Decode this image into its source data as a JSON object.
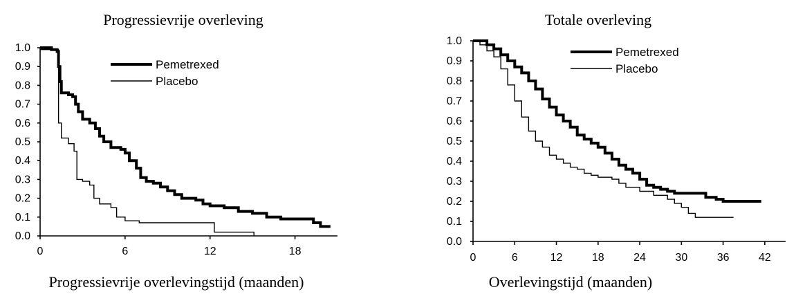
{
  "chart_data": [
    {
      "type": "line",
      "title": "Progressievrije overleving",
      "xlabel": "Progressievrije overlevingstijd (maanden)",
      "ylabel": "",
      "xlim": [
        0,
        21
      ],
      "ylim": [
        0,
        1
      ],
      "x_ticks": [
        "0",
        "6",
        "12",
        "18"
      ],
      "y_ticks": [
        "0.0",
        "0.1",
        "0.2",
        "0.3",
        "0.4",
        "0.5",
        "0.6",
        "0.7",
        "0.8",
        "0.9",
        "1.0"
      ],
      "legend_position": "top-center",
      "grid": false,
      "series": [
        {
          "name": "Pemetrexed",
          "color": "#000000",
          "line_style": "thick",
          "points": [
            [
              0,
              1.0
            ],
            [
              0.6,
              1.0
            ],
            [
              0.8,
              0.99
            ],
            [
              1.2,
              0.98
            ],
            [
              1.3,
              0.9
            ],
            [
              1.4,
              0.82
            ],
            [
              1.5,
              0.76
            ],
            [
              2.0,
              0.75
            ],
            [
              2.3,
              0.74
            ],
            [
              2.5,
              0.7
            ],
            [
              2.7,
              0.66
            ],
            [
              3.0,
              0.62
            ],
            [
              3.5,
              0.6
            ],
            [
              3.9,
              0.57
            ],
            [
              4.2,
              0.53
            ],
            [
              4.5,
              0.5
            ],
            [
              5.0,
              0.47
            ],
            [
              5.7,
              0.46
            ],
            [
              6.0,
              0.44
            ],
            [
              6.3,
              0.4
            ],
            [
              6.8,
              0.36
            ],
            [
              7.1,
              0.31
            ],
            [
              7.5,
              0.29
            ],
            [
              8.0,
              0.28
            ],
            [
              8.5,
              0.26
            ],
            [
              9.0,
              0.24
            ],
            [
              9.5,
              0.22
            ],
            [
              10.0,
              0.2
            ],
            [
              11.0,
              0.19
            ],
            [
              11.5,
              0.17
            ],
            [
              12.0,
              0.16
            ],
            [
              13.0,
              0.15
            ],
            [
              14.0,
              0.13
            ],
            [
              15.0,
              0.12
            ],
            [
              16.0,
              0.1
            ],
            [
              17.0,
              0.09
            ],
            [
              19.0,
              0.09
            ],
            [
              19.3,
              0.07
            ],
            [
              19.8,
              0.05
            ],
            [
              20.5,
              0.05
            ]
          ]
        },
        {
          "name": "Placebo",
          "color": "#000000",
          "line_style": "thin",
          "points": [
            [
              0,
              0.99
            ],
            [
              1.2,
              0.99
            ],
            [
              1.3,
              0.6
            ],
            [
              1.5,
              0.52
            ],
            [
              2.0,
              0.49
            ],
            [
              2.4,
              0.45
            ],
            [
              2.6,
              0.3
            ],
            [
              3.0,
              0.29
            ],
            [
              3.5,
              0.27
            ],
            [
              3.8,
              0.2
            ],
            [
              4.2,
              0.17
            ],
            [
              5.0,
              0.15
            ],
            [
              5.4,
              0.1
            ],
            [
              6.0,
              0.08
            ],
            [
              7.0,
              0.07
            ],
            [
              12.0,
              0.07
            ],
            [
              12.3,
              0.02
            ],
            [
              15.0,
              0.02
            ],
            [
              15.1,
              0.0
            ]
          ]
        }
      ]
    },
    {
      "type": "line",
      "title": "Totale overleving",
      "xlabel": "Overlevingstijd (maanden)",
      "ylabel": "",
      "xlim": [
        0,
        45
      ],
      "ylim": [
        0,
        1
      ],
      "x_ticks": [
        "0",
        "6",
        "12",
        "18",
        "24",
        "30",
        "36",
        "42"
      ],
      "y_ticks": [
        "0.0",
        "0.1",
        "0.2",
        "0.3",
        "0.4",
        "0.5",
        "0.6",
        "0.7",
        "0.8",
        "0.9",
        "1.0"
      ],
      "legend_position": "top-center",
      "grid": false,
      "series": [
        {
          "name": "Pemetrexed",
          "color": "#000000",
          "line_style": "thick",
          "points": [
            [
              0,
              1.0
            ],
            [
              1,
              1.0
            ],
            [
              2,
              0.98
            ],
            [
              3,
              0.96
            ],
            [
              4,
              0.93
            ],
            [
              5,
              0.9
            ],
            [
              6,
              0.87
            ],
            [
              7,
              0.84
            ],
            [
              8,
              0.8
            ],
            [
              9,
              0.76
            ],
            [
              10,
              0.71
            ],
            [
              11,
              0.67
            ],
            [
              12,
              0.63
            ],
            [
              13,
              0.6
            ],
            [
              14,
              0.57
            ],
            [
              15,
              0.53
            ],
            [
              16,
              0.51
            ],
            [
              17,
              0.49
            ],
            [
              18,
              0.47
            ],
            [
              19,
              0.44
            ],
            [
              20,
              0.41
            ],
            [
              21,
              0.38
            ],
            [
              22,
              0.36
            ],
            [
              23,
              0.34
            ],
            [
              24,
              0.31
            ],
            [
              25,
              0.28
            ],
            [
              26,
              0.27
            ],
            [
              27,
              0.26
            ],
            [
              28,
              0.25
            ],
            [
              29,
              0.24
            ],
            [
              33,
              0.24
            ],
            [
              33.5,
              0.22
            ],
            [
              35,
              0.21
            ],
            [
              36,
              0.2
            ],
            [
              41.5,
              0.2
            ]
          ]
        },
        {
          "name": "Placebo",
          "color": "#000000",
          "line_style": "thin",
          "points": [
            [
              0,
              1.0
            ],
            [
              1,
              0.98
            ],
            [
              2,
              0.95
            ],
            [
              3,
              0.92
            ],
            [
              4,
              0.86
            ],
            [
              5,
              0.78
            ],
            [
              6,
              0.7
            ],
            [
              7,
              0.62
            ],
            [
              8,
              0.55
            ],
            [
              9,
              0.5
            ],
            [
              10,
              0.47
            ],
            [
              11,
              0.43
            ],
            [
              12,
              0.41
            ],
            [
              13,
              0.39
            ],
            [
              14,
              0.37
            ],
            [
              15,
              0.36
            ],
            [
              16,
              0.34
            ],
            [
              17,
              0.33
            ],
            [
              18,
              0.32
            ],
            [
              20,
              0.31
            ],
            [
              21,
              0.29
            ],
            [
              22,
              0.27
            ],
            [
              24,
              0.25
            ],
            [
              26,
              0.23
            ],
            [
              28,
              0.21
            ],
            [
              29,
              0.19
            ],
            [
              30,
              0.17
            ],
            [
              31,
              0.14
            ],
            [
              32,
              0.12
            ],
            [
              37.5,
              0.12
            ]
          ]
        }
      ]
    }
  ]
}
